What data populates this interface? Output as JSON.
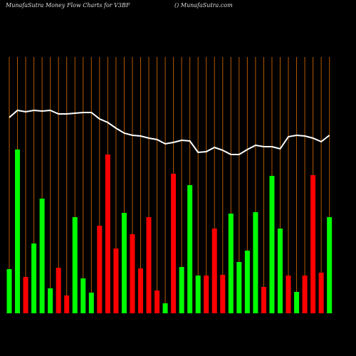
{
  "chart_data": {
    "type": "bar",
    "title": "MunafaSutra  Money Flow  Charts for V3BF",
    "subtitle": "() MunafaSutra.com",
    "categories": [
      null,
      null,
      null,
      null,
      null,
      null,
      null,
      null,
      null,
      null,
      null,
      null,
      null,
      null,
      null,
      null,
      null,
      null,
      null,
      null,
      null,
      null,
      null,
      null,
      null,
      null,
      null,
      null,
      null,
      null,
      null,
      null,
      null,
      null,
      null,
      null,
      null,
      null,
      null,
      null
    ],
    "values": [
      62,
      230,
      51,
      98,
      161,
      35,
      64,
      25,
      135,
      49,
      29,
      123,
      223,
      91,
      141,
      111,
      63,
      135,
      32,
      14,
      196,
      65,
      180,
      53,
      53,
      119,
      54,
      140,
      72,
      88,
      142,
      37,
      193,
      119,
      53,
      30,
      53,
      194,
      57,
      135
    ],
    "bar_colors": [
      "#00ff00",
      "#00ff00",
      "#ff0000",
      "#00ff00",
      "#00ff00",
      "#00ff00",
      "#ff0000",
      "#ff0000",
      "#00ff00",
      "#00ff00",
      "#00ff00",
      "#ff0000",
      "#ff0000",
      "#ff0000",
      "#00ff00",
      "#ff0000",
      "#ff0000",
      "#ff0000",
      "#ff0000",
      "#00ff00",
      "#ff0000",
      "#00ff00",
      "#00ff00",
      "#00ff00",
      "#ff0000",
      "#ff0000",
      "#ff0000",
      "#00ff00",
      "#00ff00",
      "#00ff00",
      "#00ff00",
      "#ff0000",
      "#00ff00",
      "#00ff00",
      "#ff0000",
      "#00ff00",
      "#ff0000",
      "#ff0000",
      "#ff0000",
      "#00ff00"
    ],
    "line": {
      "color": "#ffffff",
      "values": [
        275,
        285,
        283,
        285,
        284,
        285,
        280,
        280,
        281,
        282,
        282,
        273,
        268,
        260,
        253,
        250,
        249,
        246,
        244,
        238,
        240,
        243,
        242,
        226,
        227,
        233,
        229,
        223,
        223,
        230,
        236,
        234,
        234,
        231,
        248,
        250,
        249,
        246,
        241,
        250
      ]
    },
    "ylim": [
      0,
      360
    ],
    "grid_color": "#b35900",
    "background": "#000000"
  }
}
